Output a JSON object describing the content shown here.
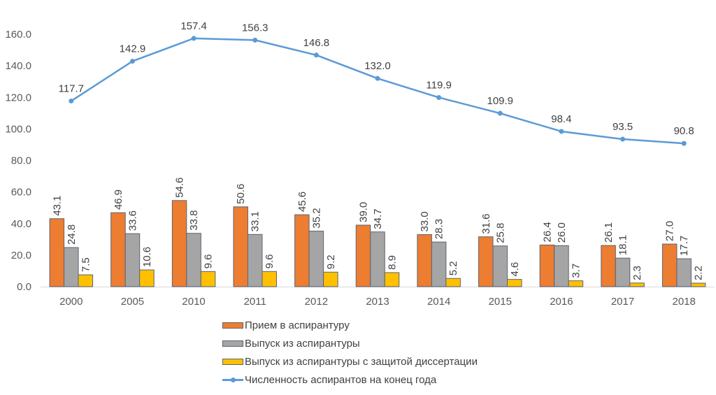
{
  "chart_data": {
    "type": "bar+line",
    "title": "",
    "xlabel": "",
    "ylabel": "",
    "ylim": [
      0,
      160
    ],
    "yticks": [
      "0.0",
      "20.0",
      "40.0",
      "60.0",
      "80.0",
      "100.0",
      "120.0",
      "140.0",
      "160.0"
    ],
    "categories": [
      "2000",
      "2005",
      "2010",
      "2011",
      "2012",
      "2013",
      "2014",
      "2015",
      "2016",
      "2017",
      "2018"
    ],
    "series": [
      {
        "name": "Прием в  аспирантуру",
        "type": "bar",
        "color": "#ed7d31",
        "values": [
          43.1,
          46.9,
          54.6,
          50.6,
          45.6,
          39.0,
          33.0,
          31.6,
          26.4,
          26.1,
          27.0
        ],
        "labels": [
          "43.1",
          "46.9",
          "54.6",
          "50.6",
          "45.6",
          "39.0",
          "33.0",
          "31.6",
          "26.4",
          "26.1",
          "27.0"
        ]
      },
      {
        "name": "Выпуск из аспирантуры",
        "type": "bar",
        "color": "#a5a5a5",
        "values": [
          24.8,
          33.6,
          33.8,
          33.1,
          35.2,
          34.7,
          28.3,
          25.8,
          26.0,
          18.1,
          17.7
        ],
        "labels": [
          "24.8",
          "33.6",
          "33.8",
          "33.1",
          "35.2",
          "34.7",
          "28.3",
          "25.8",
          "26.0",
          "18.1",
          "17.7"
        ]
      },
      {
        "name": "Выпуск из аспирантуры с защитой диссертации",
        "type": "bar",
        "color": "#ffc000",
        "values": [
          7.5,
          10.6,
          9.6,
          9.6,
          9.2,
          8.9,
          5.2,
          4.6,
          3.7,
          2.3,
          2.2
        ],
        "labels": [
          "7.5",
          "10.6",
          "9.6",
          "9.6",
          "9.2",
          "8.9",
          "5.2",
          "4.6",
          "3.7",
          "2.3",
          "2.2"
        ]
      },
      {
        "name": "Численность аспирантов на конец года",
        "type": "line",
        "color": "#5b9bd5",
        "values": [
          117.7,
          142.9,
          157.4,
          156.3,
          146.8,
          132.0,
          119.9,
          109.9,
          98.4,
          93.5,
          90.8
        ],
        "labels": [
          "117.7",
          "142.9",
          "157.4",
          "156.3",
          "146.8",
          "132.0",
          "119.9",
          "109.9",
          "98.4",
          "93.5",
          "90.8"
        ]
      }
    ],
    "grid": false,
    "legend_position": "bottom"
  }
}
